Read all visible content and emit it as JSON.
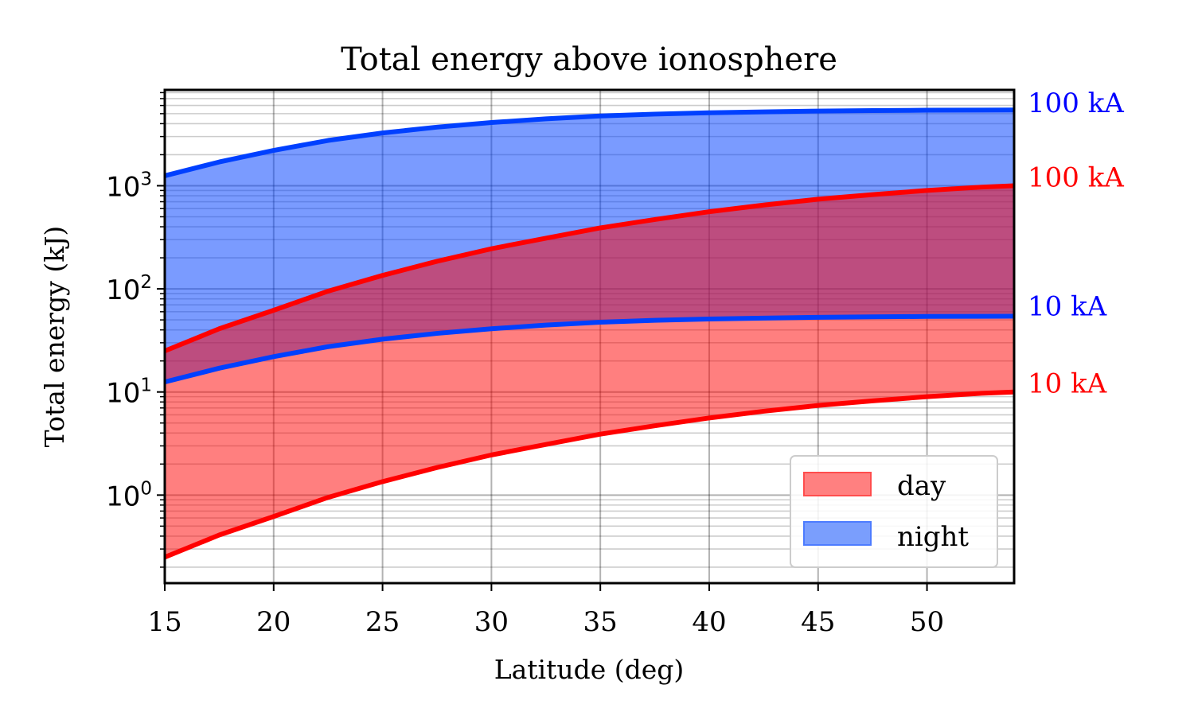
{
  "chart_data": {
    "type": "area",
    "title": "Total energy above ionosphere",
    "xlabel": "Latitude (deg)",
    "ylabel": "Total energy (kJ)",
    "xlim": [
      15,
      54
    ],
    "ylim": [
      0.14,
      8500
    ],
    "yscale": "log",
    "xticks": [
      15,
      20,
      25,
      30,
      35,
      40,
      45,
      50
    ],
    "yticks": [
      {
        "value": 1,
        "base": "10",
        "exp": "0"
      },
      {
        "value": 10,
        "base": "10",
        "exp": "1"
      },
      {
        "value": 100,
        "base": "10",
        "exp": "2"
      },
      {
        "value": 1000,
        "base": "10",
        "exp": "3"
      }
    ],
    "grid": true,
    "legend": {
      "position": "lower-right",
      "entries": [
        {
          "label": "day",
          "color": "#ff8080"
        },
        {
          "label": "night",
          "color": "#7a9efd"
        }
      ]
    },
    "x": [
      15,
      17.5,
      20,
      22.5,
      25,
      27.5,
      30,
      32.5,
      35,
      37.5,
      40,
      42.5,
      45,
      47.5,
      50,
      52.5,
      54
    ],
    "bands": [
      {
        "name": "night",
        "fill": "#0040ff",
        "fill_opacity": 0.52,
        "upper": {
          "label": "100 kA",
          "values": [
            1250,
            1700,
            2200,
            2750,
            3250,
            3700,
            4100,
            4450,
            4750,
            4950,
            5100,
            5200,
            5300,
            5350,
            5400,
            5420,
            5430
          ]
        },
        "lower": {
          "label": "10 kA",
          "values": [
            12.5,
            17,
            22,
            27.5,
            32.5,
            37,
            41,
            44.5,
            47.5,
            49.5,
            51,
            52,
            53,
            53.5,
            54,
            54.2,
            54.3
          ]
        }
      },
      {
        "name": "day",
        "fill": "#ff0000",
        "fill_opacity": 0.5,
        "upper": {
          "label": "100 kA",
          "values": [
            25,
            41,
            62,
            95,
            135,
            185,
            245,
            310,
            390,
            470,
            560,
            650,
            740,
            820,
            900,
            970,
            1000
          ]
        },
        "lower": {
          "label": "10 kA",
          "values": [
            0.25,
            0.41,
            0.62,
            0.95,
            1.35,
            1.85,
            2.45,
            3.1,
            3.9,
            4.7,
            5.6,
            6.5,
            7.4,
            8.2,
            9.0,
            9.7,
            10.0
          ]
        }
      }
    ],
    "line_colors": {
      "day": "#ff0000",
      "night": "#0040ff"
    },
    "label_colors": {
      "day": "#ff0000",
      "night": "#0000ff"
    }
  }
}
